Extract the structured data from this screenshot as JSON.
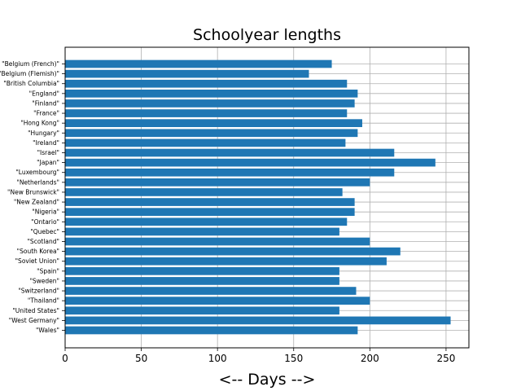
{
  "chart_data": {
    "type": "bar",
    "orientation": "horizontal",
    "title": "Schoolyear lengths",
    "xlabel": "<-- Days -->",
    "ylabel": "",
    "xlim": [
      0,
      265
    ],
    "xticks": [
      0,
      50,
      100,
      150,
      200,
      250
    ],
    "grid": true,
    "bar_color": "#1f77b4",
    "categories": [
      "\"Belgium (French)\"",
      "\"Belgium (Flemish)\"",
      "\"British Columbia\"",
      "\"England\"",
      "\"Finland\"",
      "\"France\"",
      "\"Hong Kong\"",
      "\"Hungary\"",
      "\"Ireland\"",
      "\"Israel\"",
      "\"Japan\"",
      "\"Luxembourg\"",
      "\"Netherlands\"",
      "\"New Brunswick\"",
      "\"New Zealand\"",
      "\"Nigeria\"",
      "\"Ontario\"",
      "\"Quebec\"",
      "\"Scotland\"",
      "\"South Korea\"",
      "\"Soviet Union\"",
      "\"Spain\"",
      "\"Sweden\"",
      "\"Switzerland\"",
      "\"Thailand\"",
      "\"United States\"",
      "\"West Germany\"",
      "\"Wales\""
    ],
    "values": [
      175,
      160,
      185,
      192,
      190,
      185,
      195,
      192,
      184,
      216,
      243,
      216,
      200,
      182,
      190,
      190,
      185,
      180,
      200,
      220,
      211,
      180,
      180,
      191,
      200,
      180,
      253,
      192
    ]
  }
}
